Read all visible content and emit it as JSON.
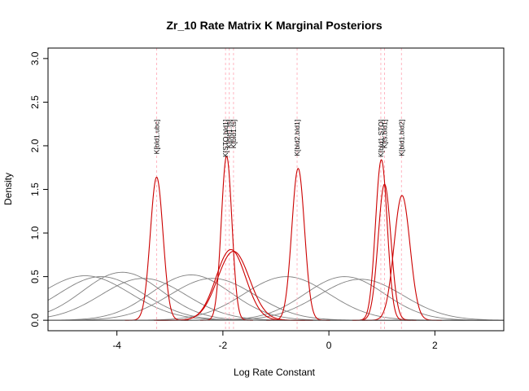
{
  "chart_data": {
    "type": "line",
    "title": "Zr_10 Rate Matrix K Marginal Posteriors",
    "xlabel": "Log Rate Constant",
    "ylabel": "Density",
    "xlim": [
      -5.3,
      3.3
    ],
    "ylim": [
      -0.12,
      3.12
    ],
    "x_ticks": [
      -4,
      -2,
      0,
      2
    ],
    "y_ticks": [
      0.0,
      0.5,
      1.0,
      1.5,
      2.0,
      2.5,
      3.0
    ],
    "x_tick_labels": [
      "-4",
      "-2",
      "0",
      "2"
    ],
    "y_tick_labels": [
      "0.0",
      "0.5",
      "1.0",
      "1.5",
      "2.0",
      "2.5",
      "3.0"
    ],
    "grid": false,
    "legend": "none",
    "colors": {
      "posterior": "#cc0000",
      "prior": "#808080",
      "marker": "#ffb6c1",
      "baseline": "#555555"
    },
    "markers": [
      {
        "label": "K[bld1.ubc]",
        "x": -3.25
      },
      {
        "label": "K[STO.bld1]",
        "x": -1.95
      },
      {
        "label": "K[bld1.ts]",
        "x": -1.88
      },
      {
        "label": "K[bld1.ts]",
        "x": -1.8
      },
      {
        "label": "K[bld2.bld1]",
        "x": -0.6
      },
      {
        "label": "K[bld1.STO]",
        "x": 0.98
      },
      {
        "label": "K[ts.bld1]",
        "x": 1.05
      },
      {
        "label": "K[bld1.bld2]",
        "x": 1.37
      }
    ],
    "posteriors": [
      {
        "mu": -3.25,
        "sigma": 0.12,
        "peak": 1.64
      },
      {
        "mu": -1.93,
        "sigma": 0.1,
        "peak": 1.88
      },
      {
        "mu": -1.85,
        "sigma": 0.28,
        "peak": 0.81
      },
      {
        "mu": -1.8,
        "sigma": 0.3,
        "peak": 0.79
      },
      {
        "mu": -0.58,
        "sigma": 0.12,
        "peak": 1.74
      },
      {
        "mu": 0.99,
        "sigma": 0.11,
        "peak": 1.84
      },
      {
        "mu": 1.05,
        "sigma": 0.12,
        "peak": 1.56
      },
      {
        "mu": 1.38,
        "sigma": 0.15,
        "peak": 1.43
      }
    ],
    "priors": [
      {
        "mu": -4.6,
        "sigma": 0.85,
        "peak": 0.51
      },
      {
        "mu": -4.3,
        "sigma": 0.8,
        "peak": 0.5
      },
      {
        "mu": -3.9,
        "sigma": 0.75,
        "peak": 0.55
      },
      {
        "mu": -3.5,
        "sigma": 0.8,
        "peak": 0.48
      },
      {
        "mu": -2.6,
        "sigma": 0.75,
        "peak": 0.52
      },
      {
        "mu": -2.2,
        "sigma": 0.8,
        "peak": 0.48
      },
      {
        "mu": -0.8,
        "sigma": 0.8,
        "peak": 0.5
      },
      {
        "mu": 0.3,
        "sigma": 0.75,
        "peak": 0.5
      },
      {
        "mu": 0.6,
        "sigma": 0.8,
        "peak": 0.47
      }
    ]
  }
}
